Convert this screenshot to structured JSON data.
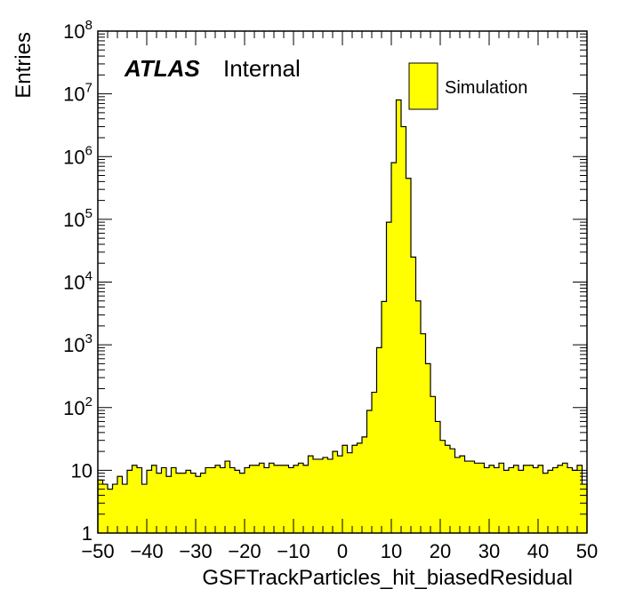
{
  "chart_data": {
    "type": "bar",
    "title": "",
    "xlabel": "GSFTrackParticles_hit_biasedResidual",
    "ylabel": "Entries",
    "xlim": [
      -50,
      50
    ],
    "ylim": [
      1,
      100000000
    ],
    "yscale": "log",
    "x_ticks": [
      "−50",
      "−40",
      "−30",
      "−20",
      "−10",
      "0",
      "10",
      "20",
      "30",
      "40",
      "50"
    ],
    "y_ticks": [
      {
        "base": "1",
        "exp": ""
      },
      {
        "base": "10",
        "exp": ""
      },
      {
        "base": "10",
        "exp": "2"
      },
      {
        "base": "10",
        "exp": "3"
      },
      {
        "base": "10",
        "exp": "4"
      },
      {
        "base": "10",
        "exp": "5"
      },
      {
        "base": "10",
        "exp": "6"
      },
      {
        "base": "10",
        "exp": "7"
      },
      {
        "base": "10",
        "exp": "8"
      }
    ],
    "bin_edges": [
      -50,
      50
    ],
    "bin_width": 1,
    "fill_color": "#ffff00",
    "line_color": "#000000",
    "series": [
      {
        "name": "Simulation",
        "values": [
          7,
          6,
          5,
          6,
          8,
          6,
          10,
          12,
          11,
          6,
          10,
          12,
          9,
          11,
          8,
          11,
          9,
          9,
          10,
          9,
          8,
          9,
          11,
          11,
          12,
          11,
          14,
          11,
          10,
          9,
          11,
          12,
          12,
          13,
          11,
          13,
          12,
          12,
          12,
          11,
          12,
          13,
          12,
          17,
          15,
          15,
          16,
          15,
          20,
          17,
          25,
          19,
          25,
          27,
          34,
          90,
          175,
          900,
          4900,
          90000,
          800000,
          8000000,
          3000000,
          450000,
          25000,
          5000,
          1500,
          500,
          150,
          60,
          30,
          25,
          22,
          16,
          17,
          14,
          14,
          13,
          13,
          11,
          12,
          11,
          13,
          10,
          11,
          12,
          10,
          12,
          12,
          11,
          12,
          9,
          10,
          11,
          12,
          13,
          11,
          10,
          12,
          6
        ]
      }
    ],
    "legend_position": "top-right",
    "annotations": {
      "atlas": "ATLAS",
      "internal": "Internal"
    }
  }
}
